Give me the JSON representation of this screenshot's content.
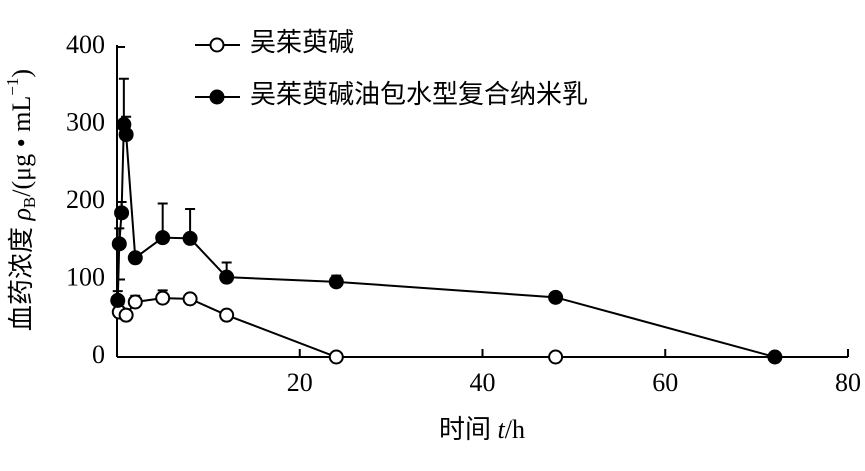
{
  "chart_data": {
    "type": "line",
    "x_label": {
      "main": "时间 ",
      "var": "t",
      "unit": "/h"
    },
    "y_label": {
      "main": "血药浓度 ",
      "var": "ρ",
      "sub": "B",
      "unit": "/(μg • mL",
      "sup": "−1",
      "close": ")"
    },
    "xlim": [
      0,
      80
    ],
    "xticks": [
      20,
      40,
      60,
      80
    ],
    "ylim": [
      0,
      400
    ],
    "yticks": [
      0,
      100,
      200,
      300,
      400
    ],
    "legend": "upper-left",
    "series": [
      {
        "name": "吴茱萸碱",
        "color": "#000000",
        "marker": "open",
        "x": [
          0.25,
          1,
          2,
          5,
          8,
          12,
          24,
          48
        ],
        "values": [
          58,
          54,
          71,
          76,
          75,
          54,
          0,
          0
        ],
        "errors": [
          10,
          6,
          8,
          10,
          6,
          6,
          0,
          0
        ]
      },
      {
        "name": "吴茱萸碱油包水型复合纳米乳",
        "color": "#000000",
        "marker": "filled",
        "x": [
          0.083,
          0.25,
          0.5,
          0.75,
          1,
          2,
          5,
          8,
          12,
          24,
          48,
          72
        ],
        "values": [
          73,
          146,
          186,
          300,
          287,
          128,
          154,
          153,
          103,
          97,
          77,
          0
        ],
        "errors": [
          12,
          20,
          14,
          59,
          23,
          6,
          44,
          38,
          19,
          8,
          5,
          0
        ]
      }
    ]
  }
}
